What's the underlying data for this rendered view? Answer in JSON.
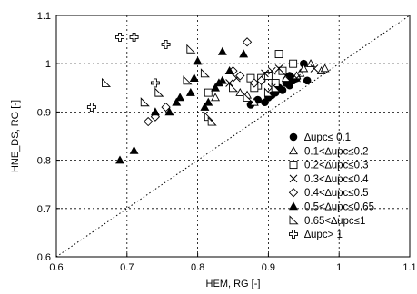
{
  "chart_data": {
    "type": "scatter",
    "xlabel": "HEM, RG [-]",
    "ylabel": "HNE_DS, RG [-]",
    "xlim": [
      0.6,
      1.1
    ],
    "ylim": [
      0.6,
      1.1
    ],
    "xticks": [
      "0.6",
      "0.7",
      "0.8",
      "0.9",
      "1",
      "1.1"
    ],
    "yticks": [
      "0.6",
      "0.7",
      "0.8",
      "0.9",
      "1",
      "1.1"
    ],
    "grid": true,
    "reference_line": "y = x (dotted)",
    "legend_position": "bottom-right",
    "series": [
      {
        "name": "∆upc≤ 0.1",
        "marker": "filled-circle",
        "points": [
          [
            0.9,
            0.93
          ],
          [
            0.905,
            0.935
          ],
          [
            0.91,
            0.94
          ],
          [
            0.915,
            0.95
          ],
          [
            0.92,
            0.945
          ],
          [
            0.925,
            0.96
          ],
          [
            0.93,
            0.955
          ],
          [
            0.935,
            0.965
          ],
          [
            0.94,
            0.97
          ],
          [
            0.95,
            1.0
          ],
          [
            0.955,
            0.965
          ],
          [
            0.885,
            0.925
          ],
          [
            0.895,
            0.92
          ],
          [
            0.875,
            0.915
          ],
          [
            0.93,
            0.975
          ]
        ]
      },
      {
        "name": "0.1<∆upc≤0.2",
        "marker": "open-triangle",
        "points": [
          [
            0.96,
            1.0
          ],
          [
            0.975,
            0.985
          ],
          [
            0.98,
            0.99
          ],
          [
            0.945,
            0.98
          ],
          [
            0.95,
            0.99
          ],
          [
            0.94,
            0.975
          ],
          [
            0.925,
            0.97
          ],
          [
            0.86,
            0.94
          ],
          [
            0.87,
            0.935
          ],
          [
            0.88,
            0.92
          ],
          [
            0.825,
            0.93
          ]
        ]
      },
      {
        "name": "0.2<∆upc≤0.3",
        "marker": "open-square",
        "points": [
          [
            0.915,
            1.02
          ],
          [
            0.92,
            0.985
          ],
          [
            0.935,
            1.0
          ],
          [
            0.89,
            0.97
          ],
          [
            0.885,
            0.955
          ],
          [
            0.875,
            0.97
          ],
          [
            0.88,
            0.95
          ],
          [
            0.815,
            0.94
          ],
          [
            0.9,
            0.975
          ],
          [
            0.91,
            0.96
          ]
        ]
      },
      {
        "name": "0.3<∆upc≤0.4",
        "marker": "x",
        "points": [
          [
            0.845,
            0.96
          ],
          [
            0.855,
            0.97
          ],
          [
            0.895,
            0.98
          ],
          [
            0.905,
            0.985
          ],
          [
            0.915,
            0.99
          ],
          [
            0.93,
            0.965
          ],
          [
            0.94,
            0.97
          ],
          [
            0.965,
            0.99
          ],
          [
            0.925,
            0.975
          ],
          [
            0.905,
            0.95
          ]
        ]
      },
      {
        "name": "0.4<∆upc≤0.5",
        "marker": "open-diamond",
        "points": [
          [
            0.87,
            1.045
          ],
          [
            0.73,
            0.88
          ],
          [
            0.74,
            0.89
          ],
          [
            0.85,
            0.985
          ],
          [
            0.86,
            0.975
          ],
          [
            0.88,
            0.96
          ],
          [
            0.89,
            0.965
          ],
          [
            0.755,
            0.91
          ]
        ]
      },
      {
        "name": "0.5<∆upc≤0.65",
        "marker": "filled-triangle",
        "points": [
          [
            0.69,
            0.8
          ],
          [
            0.71,
            0.82
          ],
          [
            0.76,
            0.9
          ],
          [
            0.77,
            0.92
          ],
          [
            0.775,
            0.93
          ],
          [
            0.79,
            0.94
          ],
          [
            0.795,
            0.97
          ],
          [
            0.8,
            1.005
          ],
          [
            0.81,
            0.91
          ],
          [
            0.815,
            0.92
          ],
          [
            0.825,
            0.95
          ],
          [
            0.835,
            0.965
          ],
          [
            0.845,
            0.985
          ],
          [
            0.835,
            1.025
          ],
          [
            0.865,
            1.02
          ],
          [
            0.74,
            0.9
          ],
          [
            0.83,
            0.96
          ]
        ]
      },
      {
        "name": "0.65<∆upc≤1",
        "marker": "open-right-triangle",
        "points": [
          [
            0.67,
            0.96
          ],
          [
            0.725,
            0.92
          ],
          [
            0.745,
            0.94
          ],
          [
            0.785,
            0.965
          ],
          [
            0.79,
            1.03
          ],
          [
            0.81,
            0.98
          ],
          [
            0.815,
            0.89
          ],
          [
            0.82,
            0.88
          ],
          [
            0.85,
            0.95
          ],
          [
            0.87,
            0.93
          ],
          [
            0.9,
            0.94
          ],
          [
            0.91,
            0.95
          ]
        ]
      },
      {
        "name": "∆upc> 1",
        "marker": "open-cross",
        "points": [
          [
            0.65,
            0.91
          ],
          [
            0.69,
            1.055
          ],
          [
            0.71,
            1.055
          ],
          [
            0.74,
            0.96
          ],
          [
            0.755,
            1.04
          ]
        ]
      }
    ]
  }
}
